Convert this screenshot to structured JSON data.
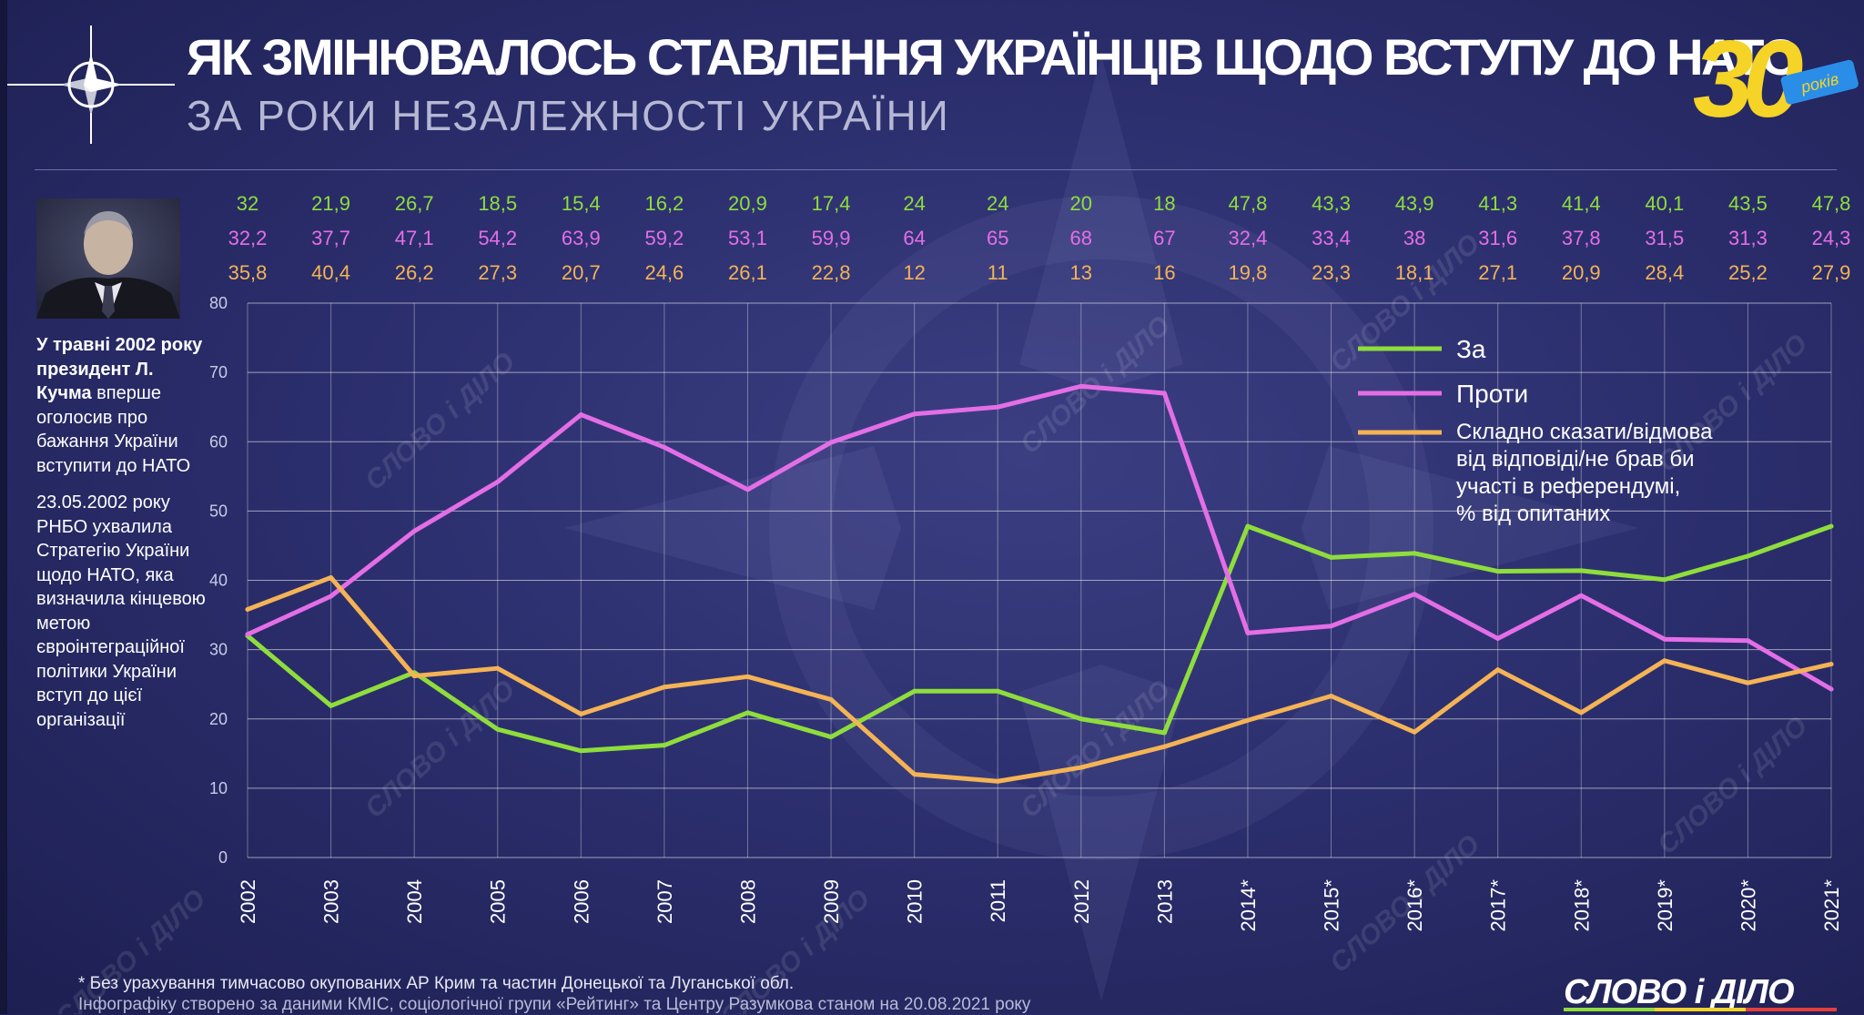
{
  "header": {
    "title": "ЯК ЗМІНЮВАЛОСЬ СТАВЛЕННЯ УКРАЇНЦІВ ЩОДО ВСТУПУ ДО НАТО",
    "subtitle": "ЗА РОКИ НЕЗАЛЕЖНОСТІ УКРАЇНИ",
    "badge_number": "30",
    "badge_word": "років"
  },
  "icons": {
    "nato": "nato-compass-star-icon",
    "portrait": "portrait-photo",
    "background": "nato-star-watermark"
  },
  "sidebar": {
    "p1_bold": "У травні 2002 року президент Л. Кучма",
    "p1_rest": "вперше оголосив про бажання України вступити до НАТО",
    "p2": "23.05.2002 року РНБО ухвалила Стратегію України щодо НАТО, яка визначила кінцевою метою євроінтеграційної політики України вступ до цієї організації"
  },
  "legend": {
    "for_label": "За",
    "against_label": "Проти",
    "unsure_lines": [
      "Складно сказати/відмова",
      "від відповіді/не брав би",
      "участі в референдумі,",
      "% від опитаних"
    ]
  },
  "footer": {
    "footnote": "* Без урахування тимчасово окупованих АР Крим та частин Донецької та Луганської обл.",
    "source": "Інфографіку створено за даними КМІС, соціологічної групи «Рейтинг» та Центру Разумкова станом на 20.08.2021 року",
    "brand": "СЛОВО і ДІЛО",
    "watermark": "СЛОВО і ДІЛО"
  },
  "colors": {
    "for": "#8fdd3c",
    "against": "#e46ee6",
    "unsure": "#f4b355",
    "accent_yellow": "#f5d327",
    "accent_blue": "#2a8ee8"
  },
  "chart_data": {
    "type": "line",
    "title": "ЯК ЗМІНЮВАЛОСЬ СТАВЛЕННЯ УКРАЇНЦІВ ЩОДО ВСТУПУ ДО НАТО",
    "categories": [
      "2002",
      "2003",
      "2004",
      "2005",
      "2006",
      "2007",
      "2008",
      "2009",
      "2010",
      "2011",
      "2012",
      "2013",
      "2014*",
      "2015*",
      "2016*",
      "2017*",
      "2018*",
      "2019*",
      "2020*",
      "2021*"
    ],
    "series": [
      {
        "name": "За",
        "color": "#8fdd3c",
        "labels": [
          "32",
          "21,9",
          "26,7",
          "18,5",
          "15,4",
          "16,2",
          "20,9",
          "17,4",
          "24",
          "24",
          "20",
          "18",
          "47,8",
          "43,3",
          "43,9",
          "41,3",
          "41,4",
          "40,1",
          "43,5",
          "47,8"
        ],
        "values": [
          32,
          21.9,
          26.7,
          18.5,
          15.4,
          16.2,
          20.9,
          17.4,
          24,
          24,
          20,
          18,
          47.8,
          43.3,
          43.9,
          41.3,
          41.4,
          40.1,
          43.5,
          47.8
        ]
      },
      {
        "name": "Проти",
        "color": "#e46ee6",
        "labels": [
          "32,2",
          "37,7",
          "47,1",
          "54,2",
          "63,9",
          "59,2",
          "53,1",
          "59,9",
          "64",
          "65",
          "68",
          "67",
          "32,4",
          "33,4",
          "38",
          "31,6",
          "37,8",
          "31,5",
          "31,3",
          "24,3"
        ],
        "values": [
          32.2,
          37.7,
          47.1,
          54.2,
          63.9,
          59.2,
          53.1,
          59.9,
          64,
          65,
          68,
          67,
          32.4,
          33.4,
          38,
          31.6,
          37.8,
          31.5,
          31.3,
          24.3
        ]
      },
      {
        "name": "Складно сказати/відмова від відповіді/не брав би участі в референдумі, % від опитаних",
        "color": "#f4b355",
        "labels": [
          "35,8",
          "40,4",
          "26,2",
          "27,3",
          "20,7",
          "24,6",
          "26,1",
          "22,8",
          "12",
          "11",
          "13",
          "16",
          "19,8",
          "23,3",
          "18,1",
          "27,1",
          "20,9",
          "28,4",
          "25,2",
          "27,9"
        ],
        "values": [
          35.8,
          40.4,
          26.2,
          27.3,
          20.7,
          24.6,
          26.1,
          22.8,
          12,
          11,
          13,
          16,
          19.8,
          23.3,
          18.1,
          27.1,
          20.9,
          28.4,
          25.2,
          27.9
        ]
      }
    ],
    "yticks": [
      "0",
      "10",
      "20",
      "30",
      "40",
      "50",
      "60",
      "70",
      "80"
    ],
    "ylim": [
      0,
      80
    ],
    "grid": true,
    "legend_position": "top-right"
  }
}
